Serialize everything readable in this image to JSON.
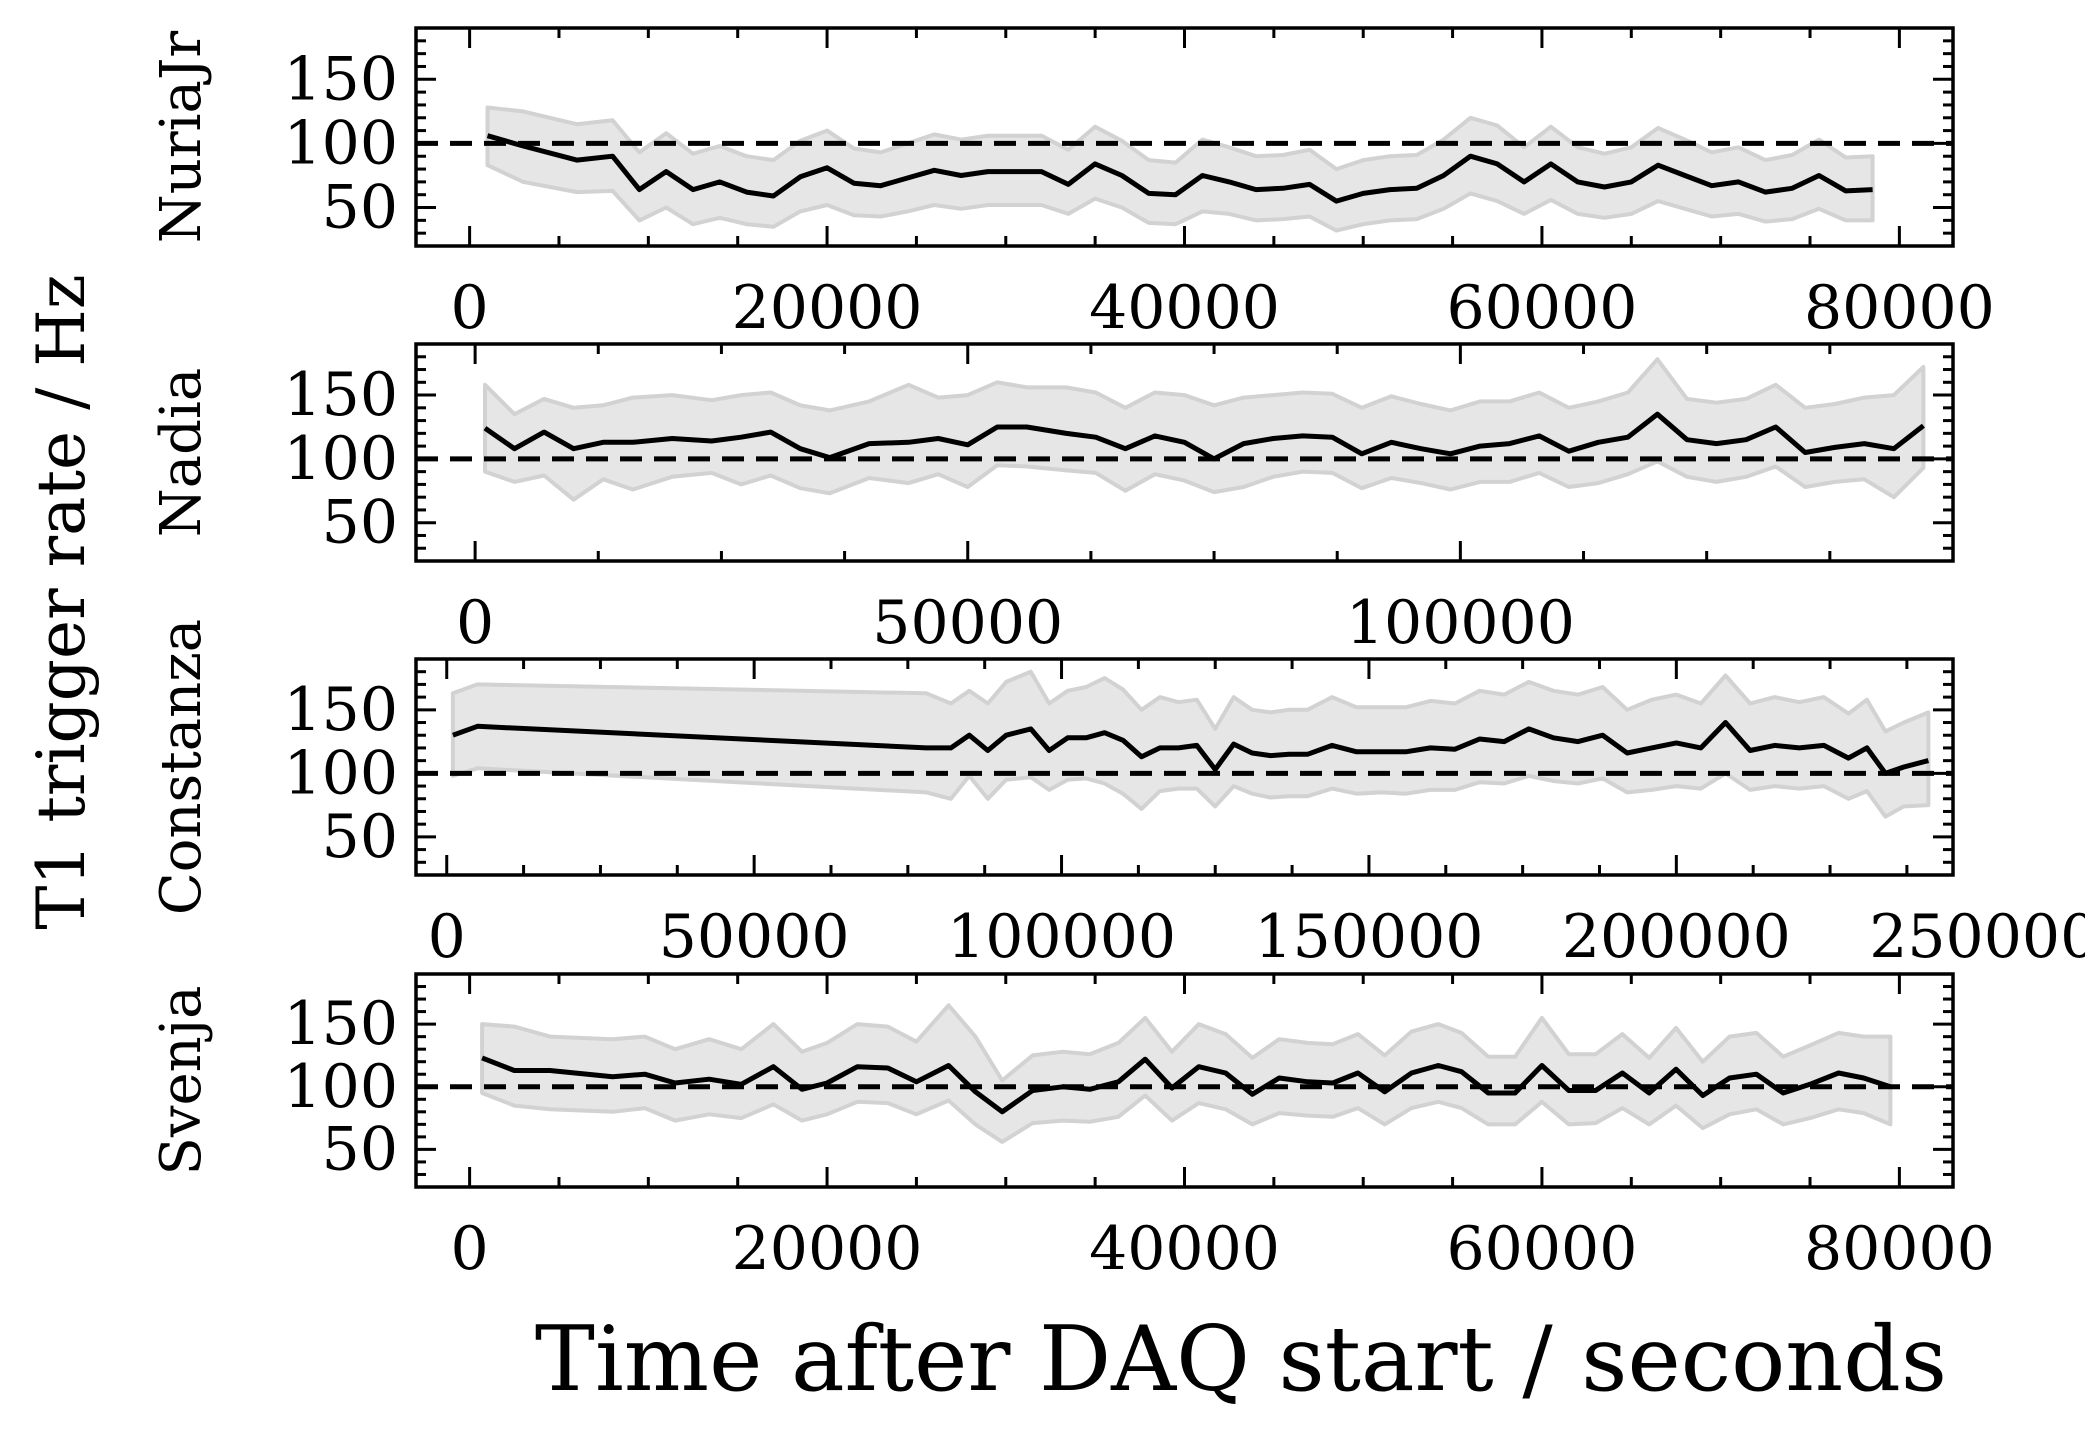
{
  "figure": {
    "ylabel": "T1 trigger rate / Hz",
    "xlabel": "Time after DAQ start / seconds"
  },
  "chart_data": [
    {
      "type": "line",
      "panel_label": "NuriaJr",
      "reference_line": 100,
      "ylim": [
        20,
        190
      ],
      "yticks": [
        50,
        100,
        150
      ],
      "xlim": [
        -3000,
        83000
      ],
      "xticks": [
        0,
        20000,
        40000,
        60000,
        80000
      ],
      "x": [
        1000,
        3000,
        6000,
        8000,
        9500,
        11000,
        12500,
        14000,
        15500,
        17000,
        18500,
        20000,
        21500,
        23000,
        24500,
        26000,
        27500,
        29000,
        30500,
        32000,
        33500,
        35000,
        36500,
        38000,
        39500,
        41000,
        42500,
        44000,
        45500,
        47000,
        48500,
        50000,
        51500,
        53000,
        54500,
        56000,
        57500,
        59000,
        60500,
        62000,
        63500,
        65000,
        66500,
        68000,
        69500,
        71000,
        72500,
        74000,
        75500,
        77000,
        78500
      ],
      "y": [
        106,
        98,
        87,
        90,
        64,
        78,
        64,
        70,
        62,
        59,
        74,
        81,
        69,
        67,
        73,
        79,
        75,
        78,
        78,
        78,
        68,
        84,
        75,
        61,
        60,
        75,
        70,
        64,
        65,
        68,
        55,
        61,
        64,
        65,
        75,
        90,
        84,
        70,
        84,
        70,
        66,
        70,
        83,
        75,
        67,
        70,
        62,
        65,
        75,
        63,
        64
      ],
      "band_lower": [
        83,
        70,
        62,
        63,
        40,
        50,
        37,
        42,
        37,
        35,
        47,
        52,
        44,
        43,
        47,
        52,
        49,
        52,
        52,
        52,
        45,
        57,
        50,
        38,
        37,
        47,
        45,
        40,
        41,
        43,
        32,
        37,
        40,
        41,
        49,
        61,
        55,
        45,
        56,
        45,
        42,
        45,
        55,
        49,
        43,
        45,
        39,
        41,
        49,
        40,
        40
      ],
      "band_upper": [
        128,
        125,
        115,
        118,
        93,
        108,
        92,
        98,
        90,
        87,
        102,
        110,
        96,
        93,
        100,
        107,
        103,
        106,
        106,
        106,
        95,
        113,
        102,
        87,
        85,
        103,
        97,
        90,
        91,
        95,
        80,
        87,
        90,
        91,
        103,
        120,
        114,
        97,
        113,
        97,
        92,
        97,
        112,
        103,
        93,
        97,
        87,
        91,
        103,
        89,
        90
      ],
      "color": "#000000",
      "band_color": "#e6e6e6"
    },
    {
      "type": "line",
      "panel_label": "Nadia",
      "reference_line": 100,
      "ylim": [
        20,
        190
      ],
      "yticks": [
        50,
        100,
        150
      ],
      "xlim": [
        -6000,
        150000
      ],
      "xticks": [
        0,
        50000,
        100000
      ],
      "x": [
        1000,
        4000,
        7000,
        10000,
        13000,
        16000,
        20000,
        24000,
        27000,
        30000,
        33000,
        36000,
        40000,
        44000,
        47000,
        50000,
        53000,
        56000,
        60000,
        63000,
        66000,
        69000,
        72000,
        75000,
        78000,
        81000,
        84000,
        87000,
        90000,
        93000,
        96000,
        99000,
        102000,
        105000,
        108000,
        111000,
        114000,
        117000,
        120000,
        123000,
        126000,
        129000,
        132000,
        135000,
        138000,
        141000,
        144000,
        147000
      ],
      "y": [
        124,
        108,
        121,
        108,
        113,
        113,
        116,
        114,
        117,
        121,
        108,
        101,
        112,
        113,
        116,
        111,
        125,
        125,
        120,
        117,
        108,
        118,
        113,
        100,
        112,
        116,
        118,
        117,
        104,
        113,
        108,
        104,
        110,
        112,
        118,
        106,
        113,
        117,
        135,
        115,
        112,
        115,
        125,
        105,
        109,
        112,
        108,
        126
      ],
      "band_lower": [
        90,
        82,
        87,
        68,
        84,
        76,
        86,
        89,
        80,
        87,
        77,
        73,
        85,
        81,
        88,
        78,
        95,
        94,
        91,
        89,
        75,
        88,
        83,
        74,
        78,
        86,
        90,
        89,
        77,
        85,
        81,
        76,
        82,
        82,
        89,
        78,
        81,
        88,
        98,
        86,
        82,
        86,
        94,
        78,
        82,
        84,
        70,
        93
      ],
      "band_upper": [
        158,
        135,
        147,
        140,
        142,
        148,
        150,
        146,
        150,
        152,
        142,
        138,
        145,
        158,
        148,
        150,
        160,
        156,
        156,
        152,
        140,
        152,
        150,
        142,
        148,
        150,
        152,
        151,
        140,
        149,
        143,
        138,
        145,
        145,
        152,
        140,
        145,
        152,
        178,
        147,
        144,
        147,
        158,
        140,
        143,
        148,
        150,
        172
      ],
      "color": "#000000",
      "band_color": "#e6e6e6"
    },
    {
      "type": "line",
      "panel_label": "Constanza",
      "reference_line": 100,
      "ylim": [
        20,
        190
      ],
      "yticks": [
        50,
        100,
        150
      ],
      "xlim": [
        -5000,
        245000
      ],
      "xticks": [
        0,
        50000,
        100000,
        150000,
        200000,
        250000
      ],
      "x": [
        1000,
        5000,
        78000,
        82000,
        85000,
        88000,
        91000,
        95000,
        98000,
        101000,
        104000,
        107000,
        110000,
        113000,
        116000,
        119000,
        122000,
        125000,
        128000,
        131000,
        134000,
        137000,
        140000,
        144000,
        148000,
        152000,
        156000,
        160000,
        164000,
        168000,
        172000,
        176000,
        180000,
        184000,
        188000,
        192000,
        196000,
        200000,
        204000,
        208000,
        212000,
        216000,
        220000,
        224000,
        228000,
        231000,
        234000,
        237000,
        241000
      ],
      "y": [
        130,
        137,
        120,
        120,
        130,
        118,
        130,
        135,
        118,
        128,
        128,
        132,
        126,
        113,
        120,
        120,
        122,
        103,
        123,
        116,
        114,
        115,
        115,
        122,
        117,
        117,
        117,
        120,
        119,
        127,
        125,
        135,
        128,
        125,
        130,
        116,
        120,
        124,
        120,
        140,
        118,
        122,
        120,
        122,
        112,
        120,
        100,
        105,
        110
      ],
      "band_lower": [
        98,
        104,
        85,
        80,
        98,
        80,
        95,
        97,
        87,
        95,
        96,
        92,
        84,
        72,
        86,
        88,
        88,
        74,
        90,
        84,
        81,
        82,
        82,
        88,
        84,
        85,
        84,
        87,
        87,
        93,
        92,
        98,
        94,
        92,
        96,
        85,
        87,
        90,
        88,
        100,
        87,
        90,
        88,
        90,
        80,
        86,
        66,
        74,
        75
      ],
      "band_upper": [
        163,
        170,
        163,
        155,
        165,
        155,
        172,
        180,
        155,
        165,
        168,
        175,
        166,
        150,
        160,
        156,
        158,
        135,
        160,
        150,
        148,
        150,
        150,
        160,
        152,
        152,
        152,
        157,
        155,
        165,
        162,
        172,
        165,
        162,
        168,
        150,
        158,
        162,
        155,
        177,
        155,
        160,
        156,
        160,
        147,
        158,
        133,
        140,
        148
      ],
      "color": "#000000",
      "band_color": "#e6e6e6"
    },
    {
      "type": "line",
      "panel_label": "Svenja",
      "reference_line": 100,
      "ylim": [
        20,
        190
      ],
      "yticks": [
        50,
        100,
        150
      ],
      "xlim": [
        -3000,
        83000
      ],
      "xticks": [
        0,
        20000,
        40000,
        60000,
        80000
      ],
      "x": [
        700,
        2500,
        4500,
        8000,
        9800,
        11500,
        13400,
        15200,
        17000,
        18600,
        20000,
        21700,
        23400,
        25000,
        26800,
        28300,
        29800,
        31500,
        33200,
        34700,
        36300,
        37800,
        39300,
        40800,
        42300,
        43800,
        45300,
        46900,
        48300,
        49700,
        51200,
        52700,
        54200,
        55500,
        57000,
        58500,
        60000,
        61500,
        63000,
        64500,
        66000,
        67500,
        69000,
        70500,
        72000,
        73500,
        75000,
        76600,
        78000,
        79500
      ],
      "y": [
        123,
        113,
        113,
        108,
        110,
        103,
        106,
        102,
        116,
        98,
        103,
        116,
        115,
        104,
        117,
        96,
        80,
        97,
        100,
        98,
        104,
        122,
        99,
        116,
        111,
        94,
        107,
        104,
        103,
        111,
        96,
        111,
        117,
        112,
        95,
        95,
        117,
        97,
        97,
        111,
        95,
        114,
        93,
        107,
        110,
        95,
        102,
        111,
        107,
        100
      ],
      "band_lower": [
        95,
        85,
        82,
        80,
        83,
        73,
        78,
        75,
        86,
        73,
        78,
        88,
        87,
        78,
        89,
        70,
        56,
        71,
        73,
        72,
        76,
        93,
        73,
        87,
        82,
        70,
        79,
        77,
        76,
        83,
        70,
        83,
        88,
        83,
        70,
        70,
        88,
        70,
        71,
        83,
        70,
        85,
        67,
        78,
        82,
        70,
        75,
        82,
        79,
        70
      ],
      "band_upper": [
        150,
        148,
        140,
        138,
        140,
        130,
        138,
        130,
        150,
        128,
        135,
        150,
        148,
        136,
        165,
        140,
        105,
        125,
        128,
        126,
        135,
        155,
        128,
        150,
        142,
        123,
        138,
        135,
        134,
        142,
        125,
        144,
        150,
        143,
        124,
        124,
        155,
        126,
        126,
        142,
        123,
        147,
        120,
        140,
        143,
        124,
        133,
        143,
        140,
        140
      ],
      "color": "#000000",
      "band_color": "#e6e6e6"
    }
  ]
}
